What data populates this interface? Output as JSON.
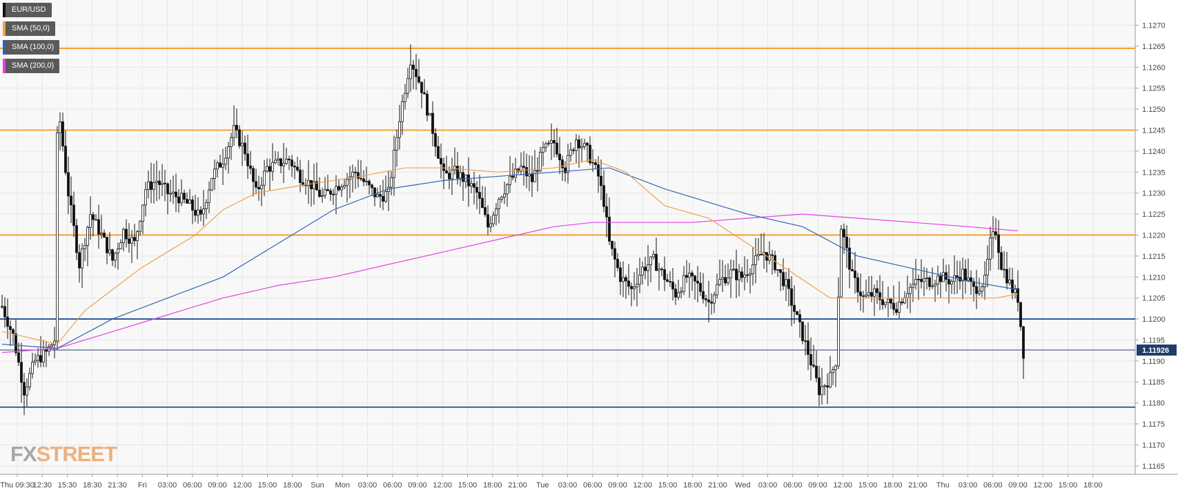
{
  "chart_data": {
    "type": "candlestick",
    "symbol": "EUR/USD",
    "timeframe": "15m",
    "ylim": [
      1.1163,
      1.1276
    ],
    "y_ticks": [
      "1.1165",
      "1.1170",
      "1.1175",
      "1.1180",
      "1.1185",
      "1.1190",
      "1.1195",
      "1.1200",
      "1.1205",
      "1.1210",
      "1.1215",
      "1.1220",
      "1.1225",
      "1.1230",
      "1.1235",
      "1.1240",
      "1.1245",
      "1.1250",
      "1.1255",
      "1.1260",
      "1.1265",
      "1.1270"
    ],
    "x_ticks": [
      "Thu 09:30",
      "12:30",
      "15:30",
      "18:30",
      "21:30",
      "Fri",
      "03:00",
      "06:00",
      "09:00",
      "12:00",
      "15:00",
      "18:00",
      "Sun",
      "Mon",
      "03:00",
      "06:00",
      "09:00",
      "12:00",
      "15:00",
      "18:00",
      "21:00",
      "Tue",
      "03:00",
      "06:00",
      "09:00",
      "12:00",
      "15:00",
      "18:00",
      "21:00",
      "Wed",
      "03:00",
      "06:00",
      "09:00",
      "12:00",
      "15:00",
      "18:00",
      "21:00",
      "Thu",
      "03:00",
      "06:00",
      "09:00",
      "12:00",
      "15:00",
      "18:00"
    ],
    "last_price": "1.11926",
    "legend": [
      {
        "label": "EUR/USD",
        "color": "#111111"
      },
      {
        "label": "SMA (50,0)",
        "color": "#f0a04b"
      },
      {
        "label": "SMA (100,0)",
        "color": "#2f64b5"
      },
      {
        "label": "SMA (200,0)",
        "color": "#e440e4"
      }
    ],
    "horizontal_levels": [
      {
        "value": 1.12645,
        "color": "#f59a1e"
      },
      {
        "value": 1.1245,
        "color": "#f59a1e"
      },
      {
        "value": 1.122,
        "color": "#f59a1e"
      },
      {
        "value": 1.12,
        "color": "#1f4f8f"
      },
      {
        "value": 1.1179,
        "color": "#1f4f8f"
      }
    ],
    "current_price_value": 1.11926,
    "candle_path": [
      [
        0,
        1.1203
      ],
      [
        4,
        1.1196
      ],
      [
        8,
        1.1183
      ],
      [
        12,
        1.119
      ],
      [
        16,
        1.1192
      ],
      [
        19,
        1.1195
      ],
      [
        20,
        1.1243
      ],
      [
        21,
        1.1247
      ],
      [
        24,
        1.123
      ],
      [
        28,
        1.1213
      ],
      [
        32,
        1.1225
      ],
      [
        36,
        1.122
      ],
      [
        40,
        1.1214
      ],
      [
        44,
        1.1221
      ],
      [
        48,
        1.1218
      ],
      [
        52,
        1.1231
      ],
      [
        56,
        1.1233
      ],
      [
        60,
        1.123
      ],
      [
        64,
        1.1229
      ],
      [
        68,
        1.1227
      ],
      [
        72,
        1.1224
      ],
      [
        76,
        1.1234
      ],
      [
        80,
        1.1238
      ],
      [
        84,
        1.1245
      ],
      [
        88,
        1.124
      ],
      [
        92,
        1.123
      ],
      [
        96,
        1.1236
      ],
      [
        100,
        1.1237
      ],
      [
        104,
        1.1238
      ],
      [
        108,
        1.1234
      ],
      [
        112,
        1.1232
      ],
      [
        116,
        1.1229
      ],
      [
        120,
        1.1231
      ],
      [
        124,
        1.1233
      ],
      [
        128,
        1.1235
      ],
      [
        132,
        1.1232
      ],
      [
        136,
        1.1229
      ],
      [
        140,
        1.123
      ],
      [
        144,
        1.1248
      ],
      [
        148,
        1.1262
      ],
      [
        152,
        1.1255
      ],
      [
        156,
        1.1245
      ],
      [
        160,
        1.1234
      ],
      [
        164,
        1.1235
      ],
      [
        168,
        1.1233
      ],
      [
        172,
        1.123
      ],
      [
        176,
        1.1222
      ],
      [
        180,
        1.1229
      ],
      [
        184,
        1.1233
      ],
      [
        188,
        1.1236
      ],
      [
        192,
        1.1233
      ],
      [
        196,
        1.124
      ],
      [
        200,
        1.1242
      ],
      [
        204,
        1.1236
      ],
      [
        208,
        1.1243
      ],
      [
        212,
        1.124
      ],
      [
        216,
        1.1234
      ],
      [
        218,
        1.1228
      ],
      [
        220,
        1.1218
      ],
      [
        224,
        1.121
      ],
      [
        228,
        1.1207
      ],
      [
        232,
        1.1212
      ],
      [
        236,
        1.1214
      ],
      [
        240,
        1.121
      ],
      [
        244,
        1.1206
      ],
      [
        248,
        1.121
      ],
      [
        252,
        1.1208
      ],
      [
        256,
        1.1204
      ],
      [
        260,
        1.1209
      ],
      [
        264,
        1.1211
      ],
      [
        268,
        1.121
      ],
      [
        272,
        1.1213
      ],
      [
        276,
        1.1216
      ],
      [
        280,
        1.1213
      ],
      [
        284,
        1.1208
      ],
      [
        288,
        1.12
      ],
      [
        292,
        1.1192
      ],
      [
        296,
        1.1183
      ],
      [
        300,
        1.1186
      ],
      [
        302,
        1.119
      ],
      [
        304,
        1.1222
      ],
      [
        308,
        1.121
      ],
      [
        312,
        1.1205
      ],
      [
        316,
        1.1206
      ],
      [
        320,
        1.1204
      ],
      [
        324,
        1.1203
      ],
      [
        328,
        1.1207
      ],
      [
        332,
        1.1209
      ],
      [
        336,
        1.1209
      ],
      [
        340,
        1.121
      ],
      [
        344,
        1.1209
      ],
      [
        348,
        1.1211
      ],
      [
        352,
        1.1207
      ],
      [
        356,
        1.1209
      ],
      [
        358,
        1.1218
      ],
      [
        360,
        1.1221
      ],
      [
        362,
        1.1213
      ],
      [
        366,
        1.1207
      ],
      [
        368,
        1.1205
      ],
      [
        370,
        1.1192
      ]
    ],
    "sma50": [
      [
        0,
        1.1197
      ],
      [
        20,
        1.1194
      ],
      [
        30,
        1.1202
      ],
      [
        50,
        1.1212
      ],
      [
        70,
        1.122
      ],
      [
        80,
        1.1226
      ],
      [
        92,
        1.123
      ],
      [
        110,
        1.1232
      ],
      [
        130,
        1.1234
      ],
      [
        146,
        1.1236
      ],
      [
        160,
        1.1236
      ],
      [
        180,
        1.1235
      ],
      [
        200,
        1.1236
      ],
      [
        214,
        1.1238
      ],
      [
        226,
        1.1235
      ],
      [
        240,
        1.1227
      ],
      [
        256,
        1.1224
      ],
      [
        270,
        1.1218
      ],
      [
        284,
        1.1212
      ],
      [
        300,
        1.1205
      ],
      [
        320,
        1.1205
      ],
      [
        340,
        1.1205
      ],
      [
        360,
        1.1205
      ],
      [
        368,
        1.1206
      ]
    ],
    "sma100": [
      [
        0,
        1.1194
      ],
      [
        20,
        1.1193
      ],
      [
        40,
        1.12
      ],
      [
        60,
        1.1205
      ],
      [
        80,
        1.121
      ],
      [
        100,
        1.1218
      ],
      [
        120,
        1.1226
      ],
      [
        140,
        1.1231
      ],
      [
        160,
        1.1233
      ],
      [
        180,
        1.1234
      ],
      [
        200,
        1.1235
      ],
      [
        220,
        1.1236
      ],
      [
        240,
        1.1231
      ],
      [
        270,
        1.1225
      ],
      [
        290,
        1.1222
      ],
      [
        310,
        1.1215
      ],
      [
        330,
        1.1212
      ],
      [
        350,
        1.1209
      ],
      [
        368,
        1.1207
      ]
    ],
    "sma200": [
      [
        0,
        1.1192
      ],
      [
        20,
        1.1193
      ],
      [
        40,
        1.1197
      ],
      [
        60,
        1.1201
      ],
      [
        80,
        1.1205
      ],
      [
        100,
        1.1208
      ],
      [
        120,
        1.121
      ],
      [
        140,
        1.1213
      ],
      [
        160,
        1.1216
      ],
      [
        180,
        1.1219
      ],
      [
        200,
        1.1222
      ],
      [
        214,
        1.1223
      ],
      [
        230,
        1.1223
      ],
      [
        250,
        1.1223
      ],
      [
        270,
        1.1224
      ],
      [
        290,
        1.1225
      ],
      [
        310,
        1.1224
      ],
      [
        330,
        1.1223
      ],
      [
        350,
        1.1222
      ],
      [
        368,
        1.1221
      ]
    ]
  },
  "branding": {
    "fx": "FX",
    "street": "STREET"
  }
}
